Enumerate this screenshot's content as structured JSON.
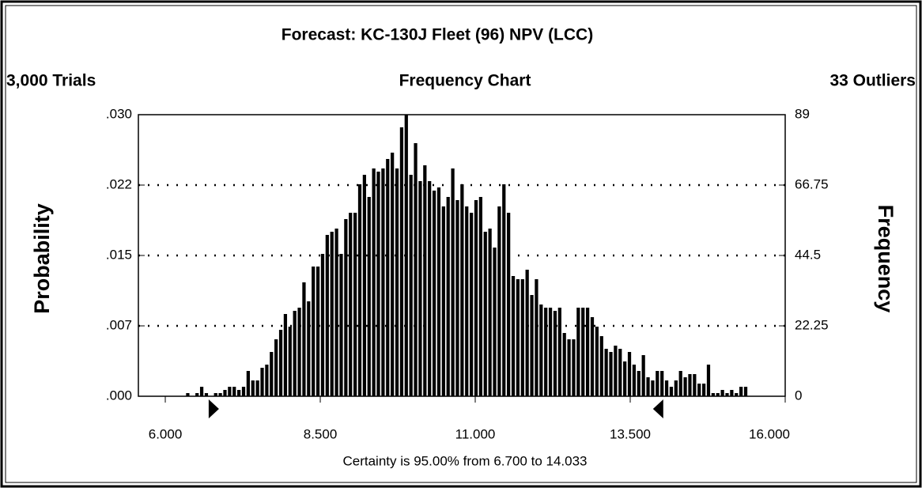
{
  "chart_data": {
    "type": "histogram",
    "title": "Forecast: KC-130J Fleet (96) NPV (LCC)",
    "trials": "3,000 Trials",
    "subtitle": "Frequency Chart",
    "outliers": "33 Outliers",
    "ylabel": "Probability",
    "y2label": "Frequency",
    "footer": "Certainty is 95.00% from 6.700 to 14.033",
    "certainty_markers": [
      6.7,
      14.033
    ],
    "color": "#000000",
    "grid": true,
    "xlim": [
      5.566,
      16
    ],
    "xticks": [
      {
        "value": 6,
        "label": "6.000"
      },
      {
        "value": 8.5,
        "label": "8.500"
      },
      {
        "value": 11,
        "label": "11.000"
      },
      {
        "value": 13.5,
        "label": "13.500"
      },
      {
        "value": 16,
        "label": "16.000"
      }
    ],
    "ylim": [
      0,
      0.029667
    ],
    "yticks": [
      {
        "value": 0,
        "label": ".000"
      },
      {
        "value": 0.0074167,
        "label": ".007"
      },
      {
        "value": 0.0148333,
        "label": ".015"
      },
      {
        "value": 0.02225,
        "label": ".022"
      },
      {
        "value": 0.029667,
        "label": ".030"
      }
    ],
    "y2lim": [
      0,
      89
    ],
    "y2ticks": [
      0,
      22.25,
      44.5,
      66.75,
      89
    ],
    "bins": [
      5.95,
      6.025,
      6.1,
      6.175,
      6.25,
      6.325,
      6.4,
      6.475,
      6.55,
      6.625,
      6.7,
      6.775,
      6.85,
      6.925,
      7,
      7.075,
      7.15,
      7.225,
      7.3,
      7.375,
      7.45,
      7.525,
      7.6,
      7.675,
      7.75,
      7.825,
      7.9,
      7.975,
      8.05,
      8.125,
      8.2,
      8.275,
      8.35,
      8.425,
      8.5,
      8.575,
      8.65,
      8.725,
      8.8,
      8.875,
      8.95,
      9.025,
      9.1,
      9.175,
      9.25,
      9.325,
      9.4,
      9.475,
      9.55,
      9.625,
      9.7,
      9.775,
      9.85,
      9.925,
      10,
      10.075,
      10.15,
      10.225,
      10.3,
      10.375,
      10.45,
      10.525,
      10.6,
      10.675,
      10.75,
      10.825,
      10.9,
      10.975,
      11.05,
      11.125,
      11.2,
      11.275,
      11.35,
      11.425,
      11.5,
      11.575,
      11.65,
      11.725,
      11.8,
      11.875,
      11.95,
      12.025,
      12.1,
      12.175,
      12.25,
      12.325,
      12.4,
      12.475,
      12.55,
      12.625,
      12.7,
      12.775,
      12.85,
      12.925,
      13,
      13.075,
      13.15,
      13.225,
      13.3,
      13.375,
      13.45,
      13.525,
      13.6,
      13.675,
      13.75,
      13.825,
      13.9,
      13.975,
      14.05,
      14.125,
      14.2,
      14.275,
      14.35,
      14.425,
      14.5,
      14.575,
      14.65,
      14.725,
      14.8,
      14.875,
      14.95,
      15.025,
      15.1,
      15.175,
      15.25,
      15.325,
      15.4
    ],
    "series": [
      {
        "name": "Frequency",
        "axis": "y2",
        "values": [
          0,
          0,
          0,
          0,
          0,
          1,
          0,
          1,
          3,
          1,
          0,
          1,
          1,
          2,
          3,
          3,
          2,
          3,
          8,
          5,
          5,
          9,
          10,
          14,
          18,
          21,
          26,
          22,
          27,
          28,
          36,
          30,
          41,
          41,
          45,
          51,
          52,
          53,
          45,
          56,
          58,
          58,
          67,
          70,
          63,
          72,
          71,
          72,
          75,
          77,
          72,
          85,
          89,
          70,
          80,
          68,
          73,
          68,
          65,
          66,
          60,
          63,
          72,
          62,
          67,
          60,
          58,
          62,
          63,
          52,
          53,
          47,
          60,
          67,
          58,
          38,
          37,
          37,
          40,
          32,
          37,
          29,
          28,
          28,
          27,
          28,
          20,
          18,
          18,
          28,
          28,
          28,
          25,
          22,
          19,
          15,
          14,
          16,
          15,
          11,
          14,
          10,
          8,
          13,
          6,
          5,
          8,
          8,
          5,
          3,
          5,
          8,
          6,
          7,
          7,
          4,
          4,
          10,
          1,
          1,
          2,
          1,
          2,
          1,
          3,
          3
        ]
      }
    ]
  }
}
